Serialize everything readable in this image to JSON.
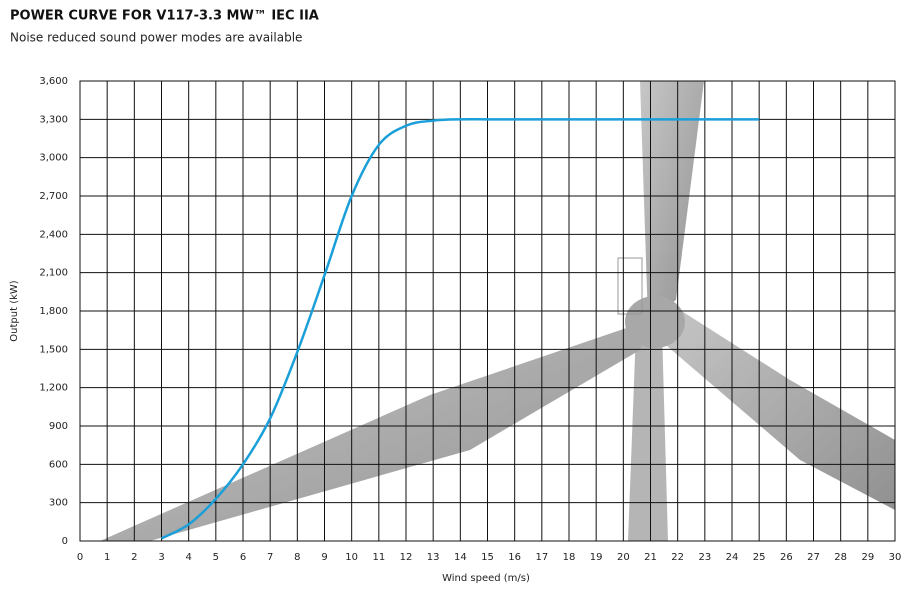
{
  "chart_data": {
    "type": "line",
    "title": "POWER CURVE FOR V117-3.3 MW™ IEC IIA",
    "subtitle": "Noise reduced sound power modes are available",
    "x_label": "Wind speed (m/s)",
    "y_label": "Output (kW)",
    "x": [
      3,
      4,
      5,
      6,
      7,
      8,
      9,
      10,
      11,
      12,
      13,
      14,
      15,
      16,
      17,
      18,
      19,
      20,
      21,
      22,
      23,
      24,
      25
    ],
    "series": [
      {
        "name": "V117-3.3 MW",
        "color": "#1a9fd9",
        "values": [
          20,
          130,
          330,
          600,
          960,
          1480,
          2080,
          2700,
          3100,
          3250,
          3290,
          3300,
          3300,
          3300,
          3300,
          3300,
          3300,
          3300,
          3300,
          3300,
          3300,
          3300,
          3300
        ]
      }
    ],
    "xlim": [
      0,
      30
    ],
    "ylim": [
      0,
      3600
    ],
    "xticks": [
      0,
      1,
      2,
      3,
      4,
      5,
      6,
      7,
      8,
      9,
      10,
      11,
      12,
      13,
      14,
      15,
      16,
      17,
      18,
      19,
      20,
      21,
      22,
      23,
      24,
      25,
      26,
      27,
      28,
      29,
      30
    ],
    "yticks": [
      0,
      300,
      600,
      900,
      {
        "value": 1200,
        "label": "1,200"
      },
      {
        "value": 1500,
        "label": "1,500"
      },
      {
        "value": 1800,
        "label": "1,800"
      },
      {
        "value": 2100,
        "label": "2,100"
      },
      {
        "value": 2400,
        "label": "2,400"
      },
      {
        "value": 2700,
        "label": "2,700"
      },
      {
        "value": 3000,
        "label": "3,000"
      },
      {
        "value": 3300,
        "label": "3,300"
      },
      {
        "value": 3600,
        "label": "3,600"
      }
    ],
    "grid": true
  }
}
